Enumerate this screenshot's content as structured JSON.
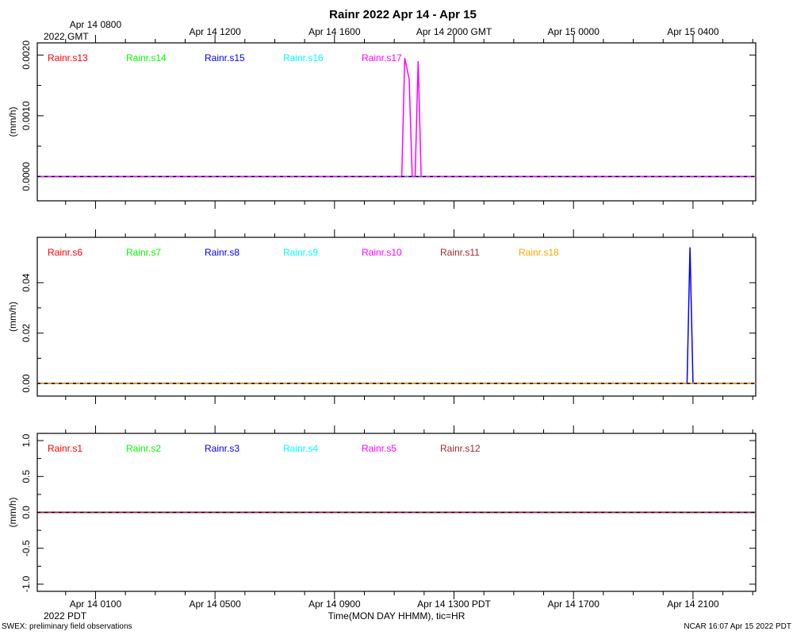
{
  "title": "Rainr 2022 Apr 14 - Apr 15",
  "top_axis": {
    "tick_labels": [
      "Apr 14 0800",
      "Apr 14 1200",
      "Apr 14 1600",
      "Apr 14 2000 GMT",
      "Apr 15 0000",
      "Apr 15 0400"
    ],
    "year_label": "2022 GMT"
  },
  "bottom_axis": {
    "tick_labels": [
      "Apr 14 0100",
      "Apr 14 0500",
      "Apr 14 0900",
      "Apr 14 1300 PDT",
      "Apr 14 1700",
      "Apr 14 2100"
    ],
    "year_label": "2022 PDT",
    "xlabel": "Time(MON DAY HHMM), tic=HR"
  },
  "footer": {
    "left": "SWEX: preliminary field observations",
    "right": "NCAR 16:07 Apr 15 2022 PDT"
  },
  "chart_data": [
    {
      "type": "line",
      "ylabel": "(mm/h)",
      "ylim": [
        -0.0004,
        0.0022
      ],
      "yticks": [
        0.0,
        0.001,
        0.002
      ],
      "ytick_labels": [
        "0.0000",
        "0.0010",
        "0.0020"
      ],
      "x_unit": "hours after Apr 14 0000 PDT",
      "xlim": [
        -0.95,
        23.1
      ],
      "series": [
        {
          "name": "Rainr.s13",
          "color": "#ff0000",
          "x": [
            -0.95,
            23.1
          ],
          "y": [
            0,
            0
          ]
        },
        {
          "name": "Rainr.s14",
          "color": "#00ff00",
          "x": [
            -0.95,
            23.1
          ],
          "y": [
            0,
            0
          ]
        },
        {
          "name": "Rainr.s15",
          "color": "#0000ff",
          "x": [
            -0.95,
            23.1
          ],
          "y": [
            0,
            0
          ]
        },
        {
          "name": "Rainr.s16",
          "color": "#00ffff",
          "x": [
            -0.95,
            23.1
          ],
          "y": [
            0,
            0
          ]
        },
        {
          "name": "Rainr.s17",
          "color": "#ff00ff",
          "x": [
            -0.95,
            11.25,
            11.35,
            11.5,
            11.6,
            11.7,
            11.8,
            11.9,
            23.1
          ],
          "y": [
            0,
            0,
            0.00195,
            0.0016,
            0,
            0,
            0.0019,
            0,
            0
          ]
        }
      ]
    },
    {
      "type": "line",
      "ylabel": "(mm/h)",
      "ylim": [
        -0.005,
        0.058
      ],
      "yticks": [
        0.0,
        0.02,
        0.04
      ],
      "ytick_labels": [
        "0.00",
        "0.02",
        "0.04"
      ],
      "x_unit": "hours after Apr 14 0000 PDT",
      "xlim": [
        -0.95,
        23.1
      ],
      "series": [
        {
          "name": "Rainr.s6",
          "color": "#ff0000",
          "x": [
            -0.95,
            23.1
          ],
          "y": [
            0,
            0
          ]
        },
        {
          "name": "Rainr.s7",
          "color": "#00ff00",
          "x": [
            -0.95,
            23.1
          ],
          "y": [
            0,
            0
          ]
        },
        {
          "name": "Rainr.s8",
          "color": "#0000ff",
          "x": [
            -0.95,
            20.8,
            20.9,
            21.0,
            23.1
          ],
          "y": [
            0,
            0,
            0.054,
            0,
            0
          ]
        },
        {
          "name": "Rainr.s9",
          "color": "#00ffff",
          "x": [
            -0.95,
            23.1
          ],
          "y": [
            0,
            0
          ]
        },
        {
          "name": "Rainr.s10",
          "color": "#ff00ff",
          "x": [
            -0.95,
            23.1
          ],
          "y": [
            0,
            0
          ]
        },
        {
          "name": "Rainr.s11",
          "color": "#a52a2a",
          "x": [
            -0.95,
            23.1
          ],
          "y": [
            0,
            0
          ]
        },
        {
          "name": "Rainr.s18",
          "color": "#ffa500",
          "x": [
            -0.95,
            23.1
          ],
          "y": [
            0,
            0
          ]
        }
      ]
    },
    {
      "type": "line",
      "ylabel": "(mm/h)",
      "ylim": [
        -1.1,
        1.1
      ],
      "yticks": [
        -1.0,
        -0.5,
        0.0,
        0.5,
        1.0
      ],
      "ytick_labels": [
        "-1.0",
        "-0.5",
        "0.0",
        "0.5",
        "1.0"
      ],
      "x_unit": "hours after Apr 14 0000 PDT",
      "xlim": [
        -0.95,
        23.1
      ],
      "series": [
        {
          "name": "Rainr.s1",
          "color": "#ff0000",
          "x": [
            -0.95,
            23.1
          ],
          "y": [
            0,
            0
          ]
        },
        {
          "name": "Rainr.s2",
          "color": "#00ff00",
          "x": [
            -0.95,
            23.1
          ],
          "y": [
            0,
            0
          ]
        },
        {
          "name": "Rainr.s3",
          "color": "#0000ff",
          "x": [
            -0.95,
            23.1
          ],
          "y": [
            0,
            0
          ]
        },
        {
          "name": "Rainr.s4",
          "color": "#00ffff",
          "x": [
            -0.95,
            23.1
          ],
          "y": [
            0,
            0
          ]
        },
        {
          "name": "Rainr.s5",
          "color": "#ff00ff",
          "x": [
            -0.95,
            23.1
          ],
          "y": [
            0,
            0
          ]
        },
        {
          "name": "Rainr.s12",
          "color": "#a52a2a",
          "x": [
            -0.95,
            23.1
          ],
          "y": [
            0,
            0
          ]
        }
      ]
    }
  ]
}
